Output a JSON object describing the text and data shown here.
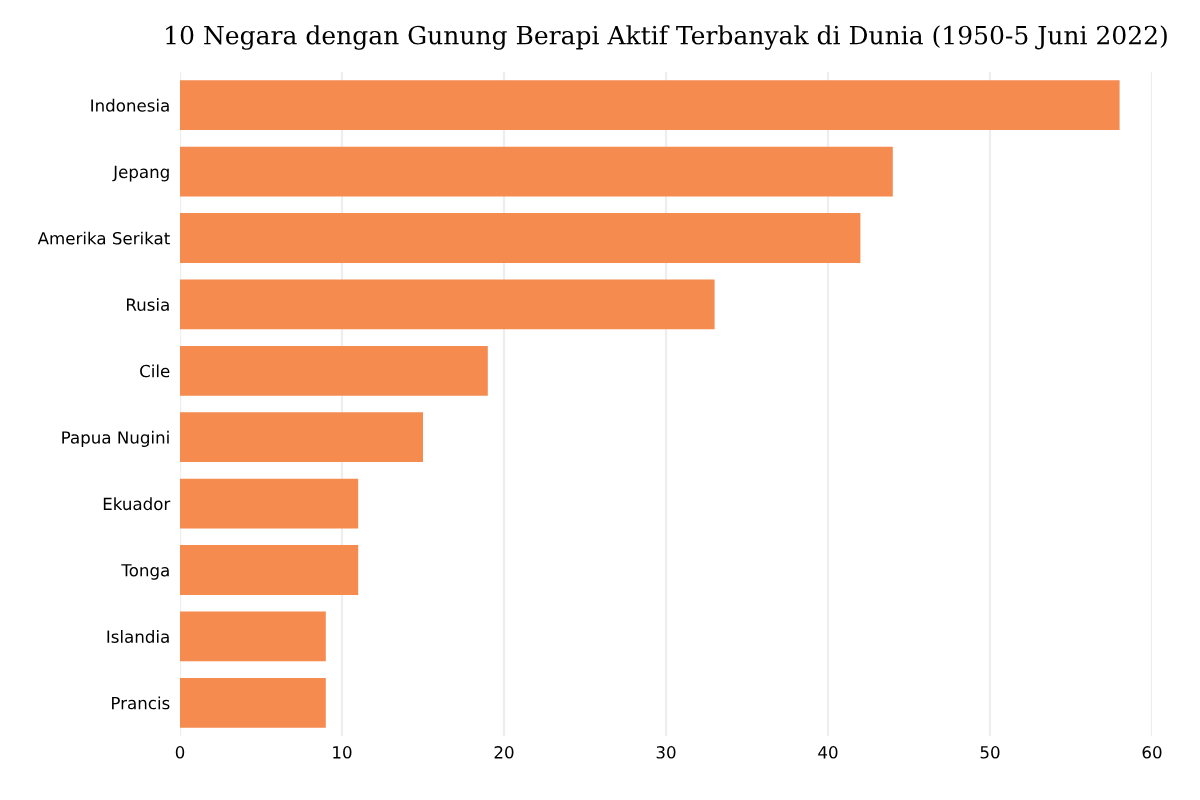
{
  "chart_data": {
    "type": "bar",
    "orientation": "horizontal",
    "title": "10 Negara dengan Gunung Berapi Aktif Terbanyak di Dunia (1950-5 Juni 2022)",
    "categories": [
      "Indonesia",
      "Jepang",
      "Amerika Serikat",
      "Rusia",
      "Cile",
      "Papua Nugini",
      "Ekuador",
      "Tonga",
      "Islandia",
      "Prancis"
    ],
    "values": [
      58,
      44,
      42,
      33,
      19,
      15,
      11,
      11,
      9,
      9
    ],
    "color": "#f58b4f",
    "xlim": [
      0,
      60
    ],
    "xticks": [
      0,
      10,
      20,
      30,
      40,
      50,
      60
    ],
    "grid": "x"
  }
}
